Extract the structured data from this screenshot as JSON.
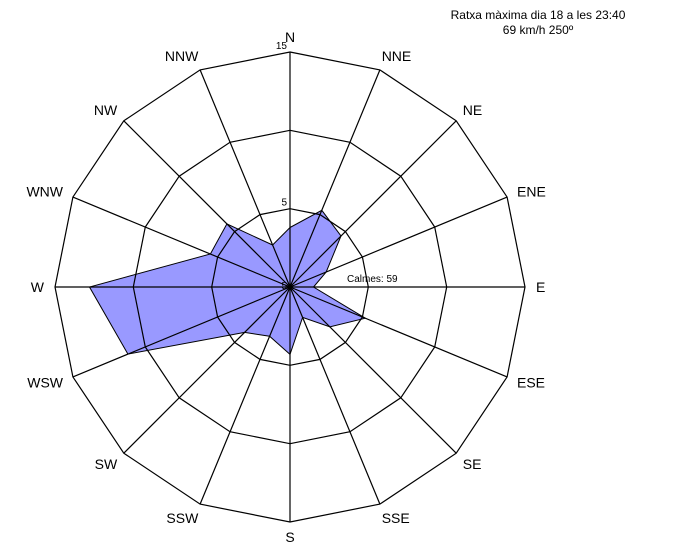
{
  "chart_data": {
    "type": "radar",
    "directions": [
      "N",
      "NNE",
      "NE",
      "ENE",
      "E",
      "ESE",
      "SE",
      "SSE",
      "S",
      "SSW",
      "SW",
      "WSW",
      "W",
      "WNW",
      "NW",
      "NNW"
    ],
    "values": [
      3.8,
      5.3,
      4.6,
      2.5,
      1.5,
      5.2,
      3.6,
      2.1,
      4.3,
      3.4,
      4.1,
      11.2,
      12.8,
      5.5,
      5.7,
      2.9
    ],
    "rings": [
      5,
      10,
      15
    ],
    "ring_labels": [
      "5",
      "15"
    ],
    "center_label": "5",
    "calms": "Calmes: 59",
    "fill_color": "#9999ff",
    "axis_color": "#000000"
  },
  "header": {
    "line1": "Ratxa màxima dia 18  a les 23:40",
    "line2": "69 km/h 250º"
  }
}
